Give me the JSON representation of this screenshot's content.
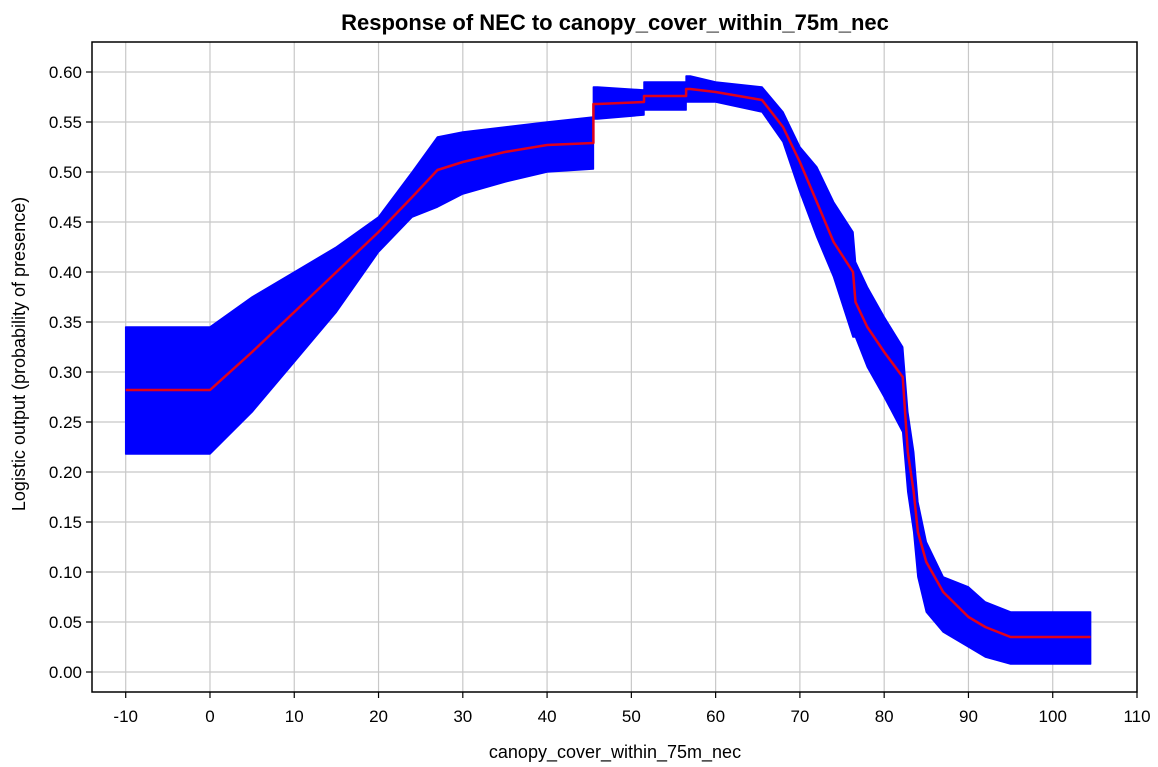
{
  "chart_data": {
    "type": "line",
    "title": "Response of NEC to canopy_cover_within_75m_nec",
    "xlabel": "canopy_cover_within_75m_nec",
    "ylabel": "Logistic output (probability of presence)",
    "xlim": [
      -14,
      110
    ],
    "ylim": [
      -0.02,
      0.63
    ],
    "x_ticks": [
      -10,
      0,
      10,
      20,
      30,
      40,
      50,
      60,
      70,
      80,
      90,
      100,
      110
    ],
    "y_ticks": [
      0.0,
      0.05,
      0.1,
      0.15,
      0.2,
      0.25,
      0.3,
      0.35,
      0.4,
      0.45,
      0.5,
      0.55,
      0.6
    ],
    "grid": true,
    "colors": {
      "mean_line": "#e0001c",
      "band": "#0000ff",
      "grid": "#c8c8c8",
      "axes": "#000000"
    },
    "series": [
      {
        "role": "mean",
        "x": [
          -10,
          0,
          5,
          10,
          15,
          20,
          24,
          27,
          30,
          35,
          40,
          45.5,
          45.5,
          46,
          51.5,
          51.5,
          56.5,
          56.5,
          57,
          60,
          65.5,
          68,
          70,
          72,
          74,
          76.3,
          76.6,
          78,
          80,
          82.2,
          82.8,
          83.5,
          84,
          85,
          87,
          90,
          92,
          95,
          104.5
        ],
        "y": [
          0.282,
          0.282,
          0.32,
          0.36,
          0.4,
          0.44,
          0.475,
          0.502,
          0.51,
          0.52,
          0.527,
          0.529,
          0.568,
          0.568,
          0.57,
          0.576,
          0.576,
          0.583,
          0.583,
          0.58,
          0.572,
          0.545,
          0.51,
          0.47,
          0.43,
          0.4,
          0.37,
          0.345,
          0.32,
          0.295,
          0.22,
          0.18,
          0.14,
          0.11,
          0.08,
          0.055,
          0.045,
          0.035,
          0.035
        ]
      },
      {
        "role": "upper",
        "x": [
          -10,
          0,
          5,
          10,
          15,
          20,
          24,
          27,
          30,
          35,
          40,
          45.5,
          45.5,
          46,
          51.5,
          51.5,
          56.5,
          56.5,
          57,
          60,
          65.5,
          68,
          70,
          72,
          74,
          76.3,
          76.6,
          78,
          80,
          82.2,
          82.8,
          83.5,
          84,
          85,
          87,
          90,
          92,
          95,
          104.5
        ],
        "y": [
          0.345,
          0.345,
          0.375,
          0.4,
          0.425,
          0.455,
          0.5,
          0.535,
          0.54,
          0.545,
          0.55,
          0.555,
          0.585,
          0.585,
          0.582,
          0.59,
          0.59,
          0.596,
          0.596,
          0.59,
          0.585,
          0.56,
          0.525,
          0.505,
          0.47,
          0.44,
          0.41,
          0.385,
          0.355,
          0.325,
          0.26,
          0.22,
          0.17,
          0.13,
          0.095,
          0.085,
          0.07,
          0.06,
          0.06
        ]
      },
      {
        "role": "lower",
        "x": [
          -10,
          0,
          5,
          10,
          15,
          20,
          24,
          27,
          30,
          35,
          40,
          45.5,
          45.5,
          46,
          51.5,
          51.5,
          56.5,
          56.5,
          57,
          60,
          65.5,
          68,
          70,
          72,
          74,
          76.3,
          76.6,
          78,
          80,
          82.2,
          82.8,
          83.5,
          84,
          85,
          87,
          90,
          92,
          95,
          104.5
        ],
        "y": [
          0.218,
          0.218,
          0.26,
          0.31,
          0.36,
          0.42,
          0.455,
          0.465,
          0.478,
          0.49,
          0.5,
          0.503,
          0.553,
          0.553,
          0.557,
          0.562,
          0.562,
          0.57,
          0.57,
          0.57,
          0.56,
          0.53,
          0.48,
          0.435,
          0.395,
          0.335,
          0.335,
          0.305,
          0.275,
          0.24,
          0.18,
          0.14,
          0.095,
          0.06,
          0.04,
          0.025,
          0.015,
          0.008,
          0.008
        ]
      }
    ]
  }
}
